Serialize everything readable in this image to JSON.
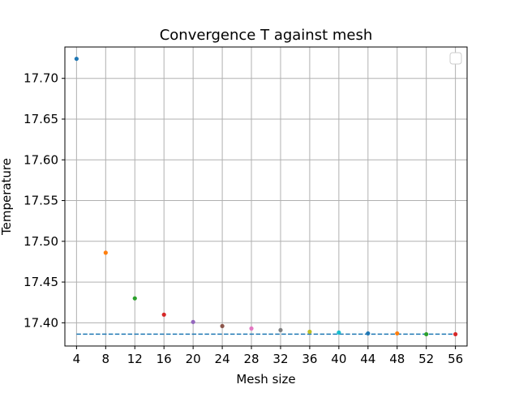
{
  "chart_data": {
    "type": "scatter",
    "title": "Convergence T against mesh",
    "xlabel": "Mesh size",
    "ylabel": "Temperature",
    "xlim": [
      2.4,
      57.6
    ],
    "ylim": [
      17.3715,
      17.7385
    ],
    "xticks": [
      4,
      8,
      12,
      16,
      20,
      24,
      28,
      32,
      36,
      40,
      44,
      48,
      52,
      56
    ],
    "xtick_labels": [
      "4",
      "8",
      "12",
      "16",
      "20",
      "24",
      "28",
      "32",
      "36",
      "40",
      "44",
      "48",
      "52",
      "56"
    ],
    "yticks": [
      17.4,
      17.45,
      17.5,
      17.55,
      17.6,
      17.65,
      17.7
    ],
    "ytick_labels": [
      "17.40",
      "17.45",
      "17.50",
      "17.55",
      "17.60",
      "17.65",
      "17.70"
    ],
    "grid": true,
    "legend": {
      "position": "upper right",
      "entries": []
    },
    "points": [
      {
        "x": 4,
        "y": 17.724,
        "color": "#1f77b4"
      },
      {
        "x": 8,
        "y": 17.486,
        "color": "#ff7f0e"
      },
      {
        "x": 12,
        "y": 17.43,
        "color": "#2ca02c"
      },
      {
        "x": 16,
        "y": 17.41,
        "color": "#d62728"
      },
      {
        "x": 20,
        "y": 17.401,
        "color": "#9467bd"
      },
      {
        "x": 24,
        "y": 17.396,
        "color": "#8c564b"
      },
      {
        "x": 28,
        "y": 17.393,
        "color": "#e377c2"
      },
      {
        "x": 32,
        "y": 17.391,
        "color": "#7f7f7f"
      },
      {
        "x": 36,
        "y": 17.389,
        "color": "#bcbd22"
      },
      {
        "x": 40,
        "y": 17.388,
        "color": "#17becf"
      },
      {
        "x": 44,
        "y": 17.387,
        "color": "#1f77b4"
      },
      {
        "x": 48,
        "y": 17.387,
        "color": "#ff7f0e"
      },
      {
        "x": 52,
        "y": 17.386,
        "color": "#2ca02c"
      },
      {
        "x": 56,
        "y": 17.386,
        "color": "#d62728"
      }
    ],
    "reference_line": {
      "y": 17.386,
      "x_start": 4,
      "x_end": 56,
      "style": "dashed",
      "color": "#1f77b4"
    }
  }
}
